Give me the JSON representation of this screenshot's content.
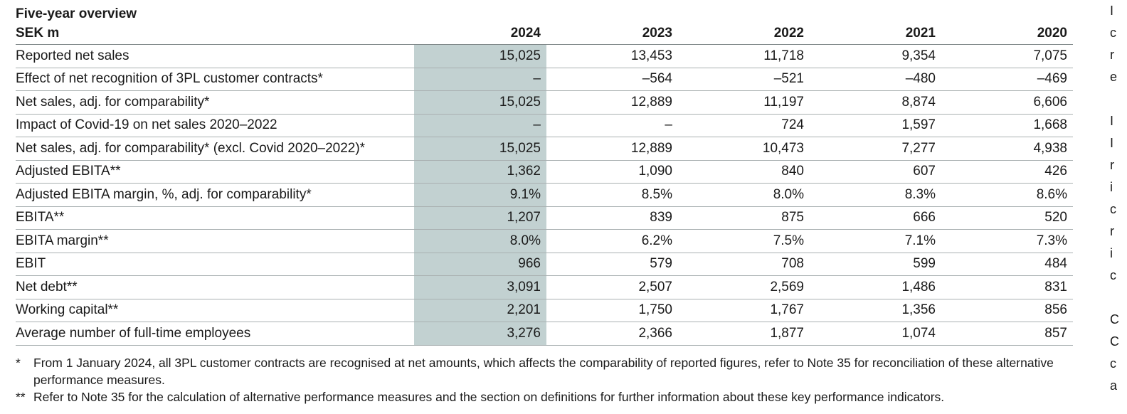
{
  "title": "Five-year overview",
  "unit": "SEK m",
  "years": [
    "2024",
    "2023",
    "2022",
    "2021",
    "2020"
  ],
  "rows": [
    {
      "label": "Reported net sales",
      "values": [
        "15,025",
        "13,453",
        "11,718",
        "9,354",
        "7,075"
      ]
    },
    {
      "label": "Effect of net recognition of 3PL customer contracts*",
      "values": [
        "–",
        "–564",
        "–521",
        "–480",
        "–469"
      ]
    },
    {
      "label": "Net sales, adj. for comparability*",
      "values": [
        "15,025",
        "12,889",
        "11,197",
        "8,874",
        "6,606"
      ]
    },
    {
      "label": "Impact of Covid-19 on net sales 2020–2022",
      "values": [
        "–",
        "–",
        "724",
        "1,597",
        "1,668"
      ]
    },
    {
      "label": "Net sales, adj. for comparability* (excl. Covid 2020–2022)*",
      "values": [
        "15,025",
        "12,889",
        "10,473",
        "7,277",
        "4,938"
      ]
    },
    {
      "label": "Adjusted EBITA**",
      "values": [
        "1,362",
        "1,090",
        "840",
        "607",
        "426"
      ]
    },
    {
      "label": "Adjusted EBITA margin, %, adj. for comparability*",
      "values": [
        "9.1%",
        "8.5%",
        "8.0%",
        "8.3%",
        "8.6%"
      ]
    },
    {
      "label": "EBITA**",
      "values": [
        "1,207",
        "839",
        "875",
        "666",
        "520"
      ]
    },
    {
      "label": "EBITA margin**",
      "values": [
        "8.0%",
        "6.2%",
        "7.5%",
        "7.1%",
        "7.3%"
      ]
    },
    {
      "label": "EBIT",
      "values": [
        "966",
        "579",
        "708",
        "599",
        "484"
      ]
    },
    {
      "label": "Net debt**",
      "values": [
        "3,091",
        "2,507",
        "2,569",
        "1,486",
        "831"
      ]
    },
    {
      "label": "Working capital**",
      "values": [
        "2,201",
        "1,750",
        "1,767",
        "1,356",
        "856"
      ]
    },
    {
      "label": "Average number of full-time employees",
      "values": [
        "3,276",
        "2,366",
        "1,877",
        "1,074",
        "857"
      ]
    }
  ],
  "footnotes": [
    {
      "mark": "*",
      "text": "From 1 January 2024, all 3PL customer contracts are recognised at net amounts, which affects the comparability of reported figures, refer to Note 35 for reconciliation of these alternative performance measures."
    },
    {
      "mark": "**",
      "text": "Refer to Note 35 for the calculation of alternative performance measures and the section on definitions for further information about these key performance indicators."
    }
  ],
  "highlight_color": "#c2d1d1",
  "right_edge_letters": [
    "I",
    "c",
    "r",
    "e",
    "",
    "I",
    "I",
    "r",
    "i",
    "c",
    "r",
    "i",
    "c",
    "",
    "C",
    "C",
    "c",
    "a"
  ]
}
